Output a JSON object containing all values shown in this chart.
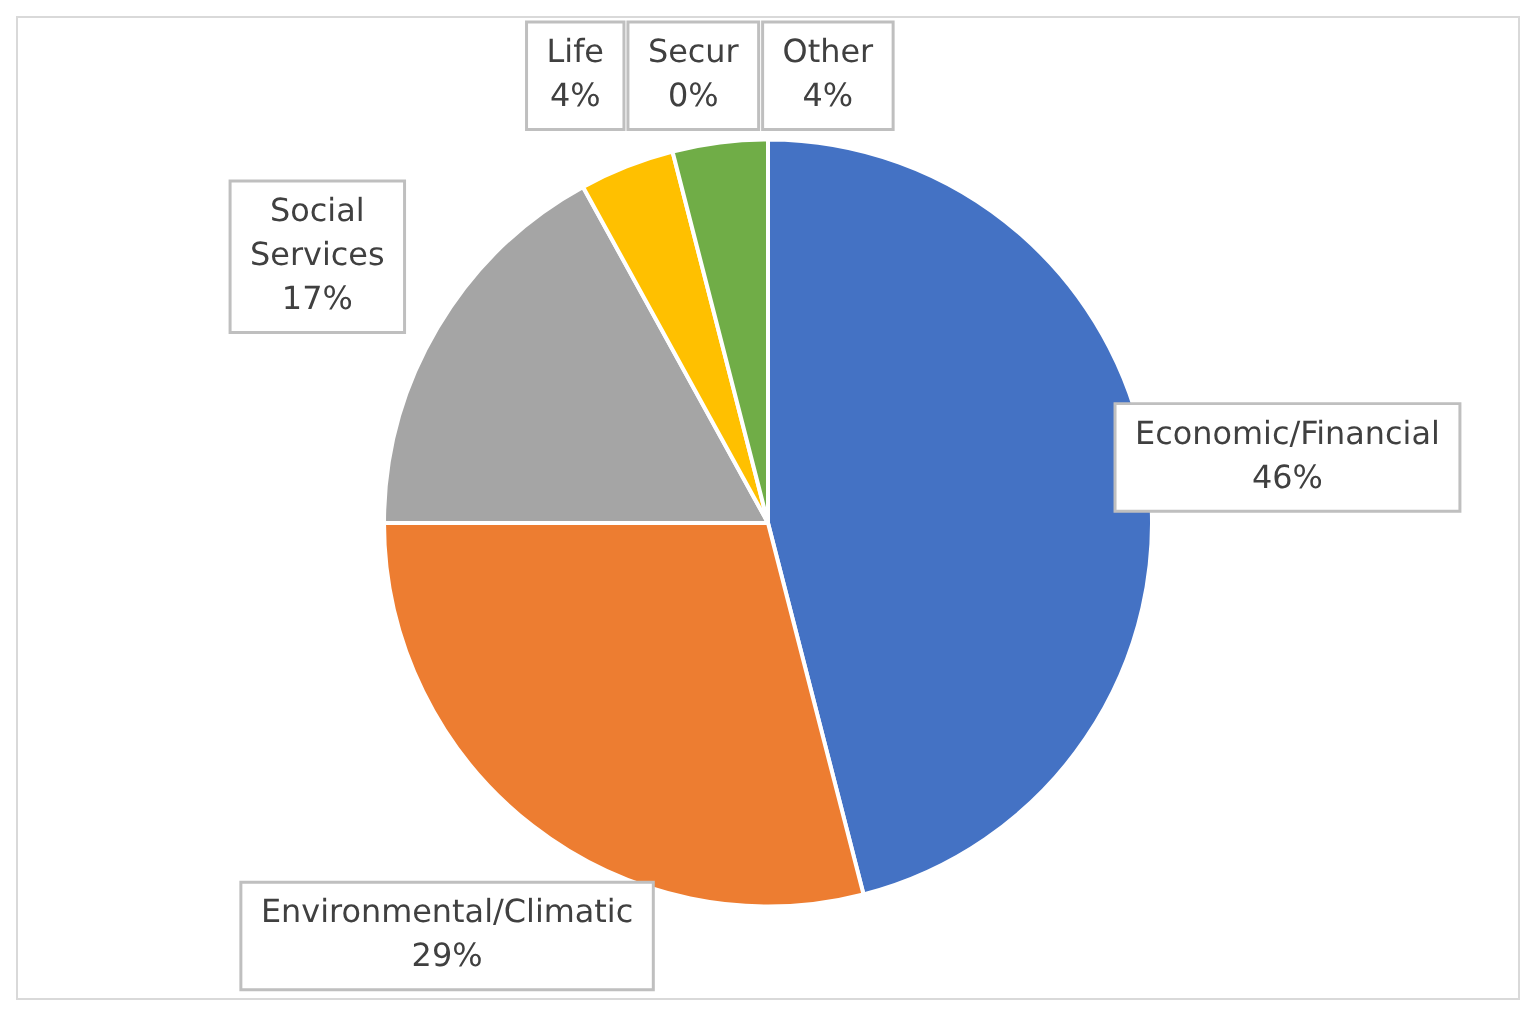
{
  "chart_data": {
    "type": "pie",
    "categories": [
      "Economic/Financial",
      "Environmental/Climatic",
      "Social Services",
      "Life",
      "Secur",
      "Other"
    ],
    "values": [
      46,
      29,
      17,
      4,
      0,
      4
    ],
    "value_labels": [
      "46%",
      "29%",
      "17%",
      "4%",
      "0%",
      "4%"
    ],
    "colors": [
      "#4472c4",
      "#ed7d31",
      "#a5a5a5",
      "#ffc000",
      "#5b9bd5",
      "#70ad47"
    ],
    "legend": false
  }
}
